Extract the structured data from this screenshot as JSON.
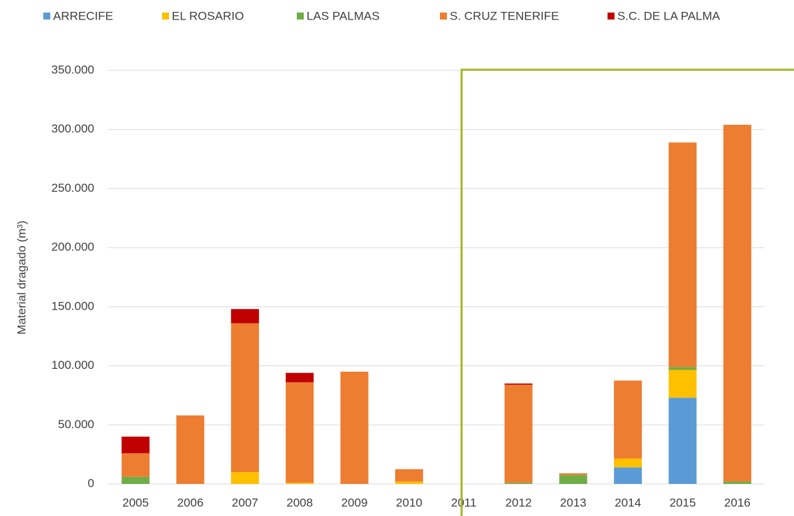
{
  "chart_data": {
    "type": "stacked_bar",
    "y_label": "Material dragado (m³)",
    "categories": [
      "2005",
      "2006",
      "2007",
      "2008",
      "2009",
      "2010",
      "2011",
      "2012",
      "2013",
      "2014",
      "2015",
      "2016"
    ],
    "series": [
      {
        "name": "ARRECIFE",
        "color": "#5b9bd5",
        "values": [
          0,
          0,
          0,
          0,
          0,
          0,
          0,
          0,
          0,
          14000,
          73000,
          0
        ]
      },
      {
        "name": "EL ROSARIO",
        "color": "#ffc000",
        "values": [
          0,
          0,
          10000,
          1000,
          0,
          2000,
          0,
          0,
          0,
          7500,
          23500,
          0
        ]
      },
      {
        "name": "LAS PALMAS",
        "color": "#70ad47",
        "values": [
          6000,
          0,
          0,
          0,
          0,
          0,
          0,
          1000,
          7500,
          0,
          2500,
          2000
        ]
      },
      {
        "name": "S. CRUZ TENERIFE",
        "color": "#ed7d31",
        "values": [
          20000,
          58000,
          126000,
          85000,
          95000,
          10500,
          0,
          83000,
          1500,
          66000,
          190000,
          302000
        ]
      },
      {
        "name": "S.C. DE LA PALMA",
        "color": "#c00000",
        "values": [
          14000,
          0,
          12000,
          8000,
          0,
          0,
          0,
          1000,
          0,
          0,
          0,
          0
        ]
      }
    ],
    "ylim": [
      0,
      350000
    ],
    "yticks": [
      0,
      {
        "value": 50000,
        "label": "50.000"
      },
      {
        "value": 100000,
        "label": "100.000"
      },
      {
        "value": 150000,
        "label": "150.000"
      },
      {
        "value": 200000,
        "label": "200.000"
      },
      {
        "value": 250000,
        "label": "250.000"
      },
      {
        "value": 300000,
        "label": "300.000"
      },
      {
        "value": 350000,
        "label": "350.000"
      }
    ],
    "grid": true
  }
}
